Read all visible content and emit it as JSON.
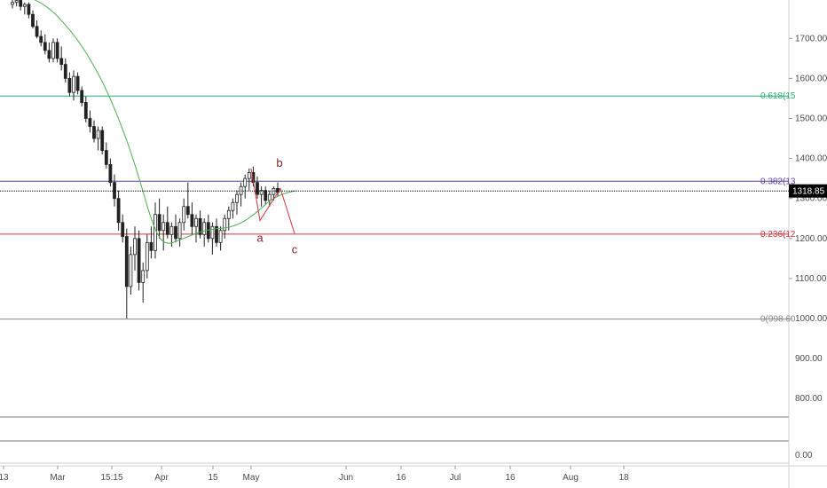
{
  "chart_data": {
    "type": "candlestick",
    "y_axis": {
      "ticks": [
        1000,
        1100,
        1200,
        1300,
        1400,
        1500,
        1600,
        1700
      ],
      "tick_labels": [
        "1000.00",
        "1100.00",
        "1200.00",
        "1300.00",
        "1400.00",
        "1500.00",
        "1600.00",
        "1700.00"
      ],
      "ylim": [
        760,
        1805
      ]
    },
    "x_axis": {
      "tick_labels": [
        "13",
        "Mar",
        "15:15",
        "Apr",
        "15",
        "May",
        "Jun",
        "16",
        "Jul",
        "16",
        "Aug",
        "18"
      ]
    },
    "last_price": {
      "value": 1318.85,
      "label": "1318.85",
      "color": "#000000"
    },
    "fib_levels": [
      {
        "ratio": 0.618,
        "value": 1556,
        "label": "0.618(15",
        "color": "#26b06a"
      },
      {
        "ratio": 0.382,
        "value": 1343,
        "label": "0.382(13",
        "color": "#5a3fa0"
      },
      {
        "ratio": 0.236,
        "value": 1211,
        "label": "0.236(12",
        "color": "#d0343c"
      },
      {
        "ratio": 0,
        "value": 998.6,
        "label": "0(998.60",
        "color": "#888888"
      }
    ],
    "wave_labels": [
      {
        "text": "a",
        "value": 1210,
        "color": "#8b1e2a"
      },
      {
        "text": "b",
        "value": 1375,
        "color": "#8b1e2a"
      },
      {
        "text": "c",
        "value": 1190,
        "color": "#8b1e2a"
      }
    ],
    "wave_path": [
      {
        "date_index": 0,
        "value": 1375
      },
      {
        "date_index": 1,
        "value": 1245
      },
      {
        "date_index": 2,
        "value": 1325
      },
      {
        "date_index": 3,
        "value": 1212
      }
    ],
    "candles": [
      {
        "o": 1785,
        "h": 1800,
        "l": 1775,
        "c": 1790
      },
      {
        "o": 1790,
        "h": 1805,
        "l": 1780,
        "c": 1795
      },
      {
        "o": 1795,
        "h": 1800,
        "l": 1770,
        "c": 1780
      },
      {
        "o": 1780,
        "h": 1790,
        "l": 1760,
        "c": 1785
      },
      {
        "o": 1785,
        "h": 1790,
        "l": 1750,
        "c": 1760
      },
      {
        "o": 1760,
        "h": 1770,
        "l": 1725,
        "c": 1730
      },
      {
        "o": 1730,
        "h": 1745,
        "l": 1700,
        "c": 1705
      },
      {
        "o": 1705,
        "h": 1720,
        "l": 1680,
        "c": 1690
      },
      {
        "o": 1690,
        "h": 1710,
        "l": 1660,
        "c": 1670
      },
      {
        "o": 1670,
        "h": 1690,
        "l": 1640,
        "c": 1650
      },
      {
        "o": 1650,
        "h": 1700,
        "l": 1640,
        "c": 1690
      },
      {
        "o": 1690,
        "h": 1700,
        "l": 1640,
        "c": 1650
      },
      {
        "o": 1650,
        "h": 1680,
        "l": 1620,
        "c": 1635
      },
      {
        "o": 1635,
        "h": 1650,
        "l": 1590,
        "c": 1600
      },
      {
        "o": 1600,
        "h": 1615,
        "l": 1555,
        "c": 1565
      },
      {
        "o": 1565,
        "h": 1620,
        "l": 1545,
        "c": 1605
      },
      {
        "o": 1605,
        "h": 1615,
        "l": 1560,
        "c": 1570
      },
      {
        "o": 1570,
        "h": 1580,
        "l": 1530,
        "c": 1540
      },
      {
        "o": 1540,
        "h": 1555,
        "l": 1490,
        "c": 1500
      },
      {
        "o": 1500,
        "h": 1520,
        "l": 1465,
        "c": 1480
      },
      {
        "o": 1480,
        "h": 1495,
        "l": 1440,
        "c": 1450
      },
      {
        "o": 1450,
        "h": 1480,
        "l": 1420,
        "c": 1470
      },
      {
        "o": 1470,
        "h": 1480,
        "l": 1410,
        "c": 1420
      },
      {
        "o": 1420,
        "h": 1440,
        "l": 1375,
        "c": 1385
      },
      {
        "o": 1385,
        "h": 1400,
        "l": 1330,
        "c": 1340
      },
      {
        "o": 1340,
        "h": 1360,
        "l": 1280,
        "c": 1300
      },
      {
        "o": 1300,
        "h": 1320,
        "l": 1220,
        "c": 1240
      },
      {
        "o": 1240,
        "h": 1260,
        "l": 1190,
        "c": 1205
      },
      {
        "o": 1205,
        "h": 1225,
        "l": 1000,
        "c": 1080
      },
      {
        "o": 1080,
        "h": 1180,
        "l": 1060,
        "c": 1160
      },
      {
        "o": 1160,
        "h": 1230,
        "l": 1120,
        "c": 1200
      },
      {
        "o": 1200,
        "h": 1220,
        "l": 1070,
        "c": 1090
      },
      {
        "o": 1090,
        "h": 1140,
        "l": 1040,
        "c": 1120
      },
      {
        "o": 1120,
        "h": 1210,
        "l": 1100,
        "c": 1190
      },
      {
        "o": 1190,
        "h": 1230,
        "l": 1150,
        "c": 1170
      },
      {
        "o": 1170,
        "h": 1290,
        "l": 1150,
        "c": 1260
      },
      {
        "o": 1260,
        "h": 1300,
        "l": 1200,
        "c": 1220
      },
      {
        "o": 1220,
        "h": 1260,
        "l": 1170,
        "c": 1240
      },
      {
        "o": 1240,
        "h": 1280,
        "l": 1200,
        "c": 1210
      },
      {
        "o": 1210,
        "h": 1240,
        "l": 1180,
        "c": 1230
      },
      {
        "o": 1230,
        "h": 1260,
        "l": 1190,
        "c": 1200
      },
      {
        "o": 1200,
        "h": 1250,
        "l": 1180,
        "c": 1240
      },
      {
        "o": 1240,
        "h": 1300,
        "l": 1220,
        "c": 1280
      },
      {
        "o": 1280,
        "h": 1340,
        "l": 1250,
        "c": 1260
      },
      {
        "o": 1260,
        "h": 1290,
        "l": 1210,
        "c": 1230
      },
      {
        "o": 1230,
        "h": 1260,
        "l": 1190,
        "c": 1250
      },
      {
        "o": 1250,
        "h": 1270,
        "l": 1200,
        "c": 1210
      },
      {
        "o": 1210,
        "h": 1250,
        "l": 1180,
        "c": 1240
      },
      {
        "o": 1240,
        "h": 1260,
        "l": 1190,
        "c": 1200
      },
      {
        "o": 1200,
        "h": 1240,
        "l": 1160,
        "c": 1230
      },
      {
        "o": 1230,
        "h": 1250,
        "l": 1180,
        "c": 1190
      },
      {
        "o": 1190,
        "h": 1230,
        "l": 1170,
        "c": 1220
      },
      {
        "o": 1220,
        "h": 1260,
        "l": 1200,
        "c": 1250
      },
      {
        "o": 1250,
        "h": 1280,
        "l": 1220,
        "c": 1270
      },
      {
        "o": 1270,
        "h": 1300,
        "l": 1250,
        "c": 1290
      },
      {
        "o": 1290,
        "h": 1320,
        "l": 1260,
        "c": 1310
      },
      {
        "o": 1310,
        "h": 1340,
        "l": 1280,
        "c": 1330
      },
      {
        "o": 1330,
        "h": 1360,
        "l": 1300,
        "c": 1350
      },
      {
        "o": 1350,
        "h": 1375,
        "l": 1320,
        "c": 1365
      },
      {
        "o": 1365,
        "h": 1380,
        "l": 1330,
        "c": 1340
      },
      {
        "o": 1340,
        "h": 1355,
        "l": 1300,
        "c": 1310
      },
      {
        "o": 1310,
        "h": 1330,
        "l": 1280,
        "c": 1320
      },
      {
        "o": 1320,
        "h": 1330,
        "l": 1285,
        "c": 1295
      },
      {
        "o": 1295,
        "h": 1320,
        "l": 1280,
        "c": 1310
      },
      {
        "o": 1310,
        "h": 1330,
        "l": 1295,
        "c": 1325
      },
      {
        "o": 1325,
        "h": 1340,
        "l": 1305,
        "c": 1315
      }
    ],
    "sma": [
      1800,
      1797,
      1792,
      1786,
      1779,
      1771,
      1762,
      1752,
      1741,
      1729,
      1717,
      1704,
      1690,
      1675,
      1659,
      1642,
      1624,
      1605,
      1585,
      1563,
      1540,
      1516,
      1490,
      1463,
      1435,
      1405,
      1373,
      1340,
      1305,
      1270,
      1240,
      1215,
      1198,
      1190,
      1188,
      1190,
      1194,
      1198,
      1202,
      1206,
      1210,
      1214,
      1217,
      1220,
      1222,
      1224,
      1225,
      1226,
      1227,
      1229,
      1232,
      1236,
      1241,
      1247,
      1254,
      1262,
      1270,
      1279,
      1288,
      1296,
      1302,
      1307,
      1311,
      1314,
      1317,
      1319
    ]
  }
}
